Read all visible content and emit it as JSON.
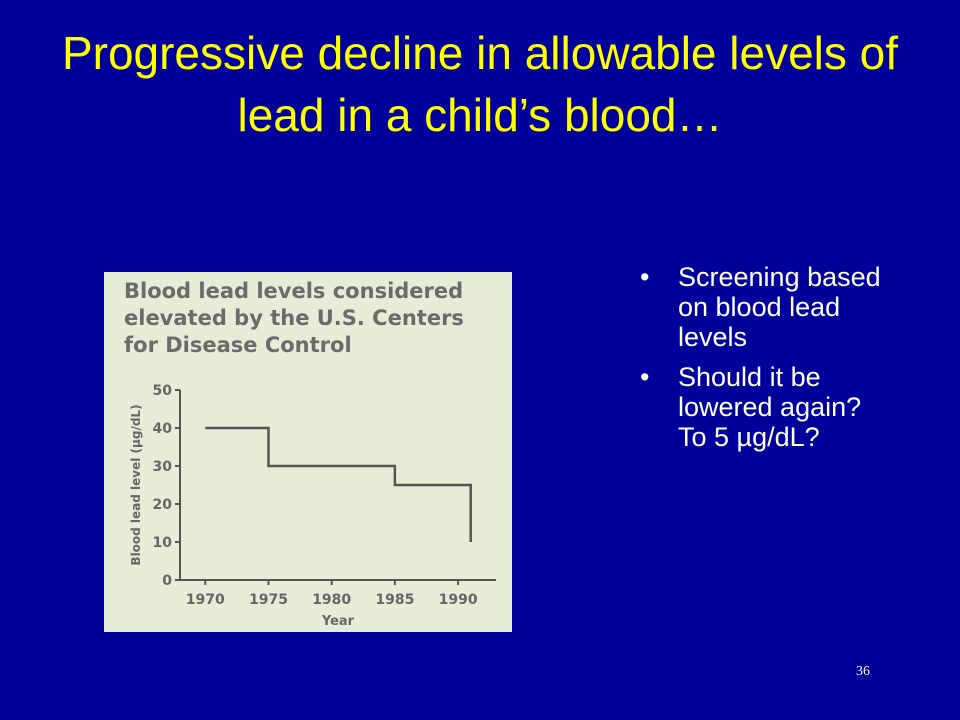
{
  "slide": {
    "title": "Progressive decline in allowable levels of lead in a child’s blood…",
    "page_number": "36"
  },
  "figure": {
    "caption": "Blood lead levels considered elevated by the U.S. Centers for Disease Control"
  },
  "bullets": [
    {
      "text": "Screening based on blood lead levels"
    },
    {
      "text": "Should it  be lowered again? To 5 µg/dL?"
    }
  ],
  "chart_data": {
    "type": "line",
    "line_shape": "step",
    "xlabel": "Year",
    "ylabel": "Blood lead level (µg/dL)",
    "xlim": [
      1968,
      1993
    ],
    "ylim": [
      0,
      50
    ],
    "xticks": [
      1970,
      1975,
      1980,
      1985,
      1990
    ],
    "yticks": [
      0,
      10,
      20,
      30,
      40,
      50
    ],
    "grid": false,
    "series": [
      {
        "x": [
          1970,
          1975,
          1985,
          1991,
          1991
        ],
        "y": [
          40,
          30,
          25,
          25,
          10
        ]
      }
    ],
    "colors": {
      "line": "#555555",
      "axis": "#555555",
      "text": "#666666"
    }
  }
}
